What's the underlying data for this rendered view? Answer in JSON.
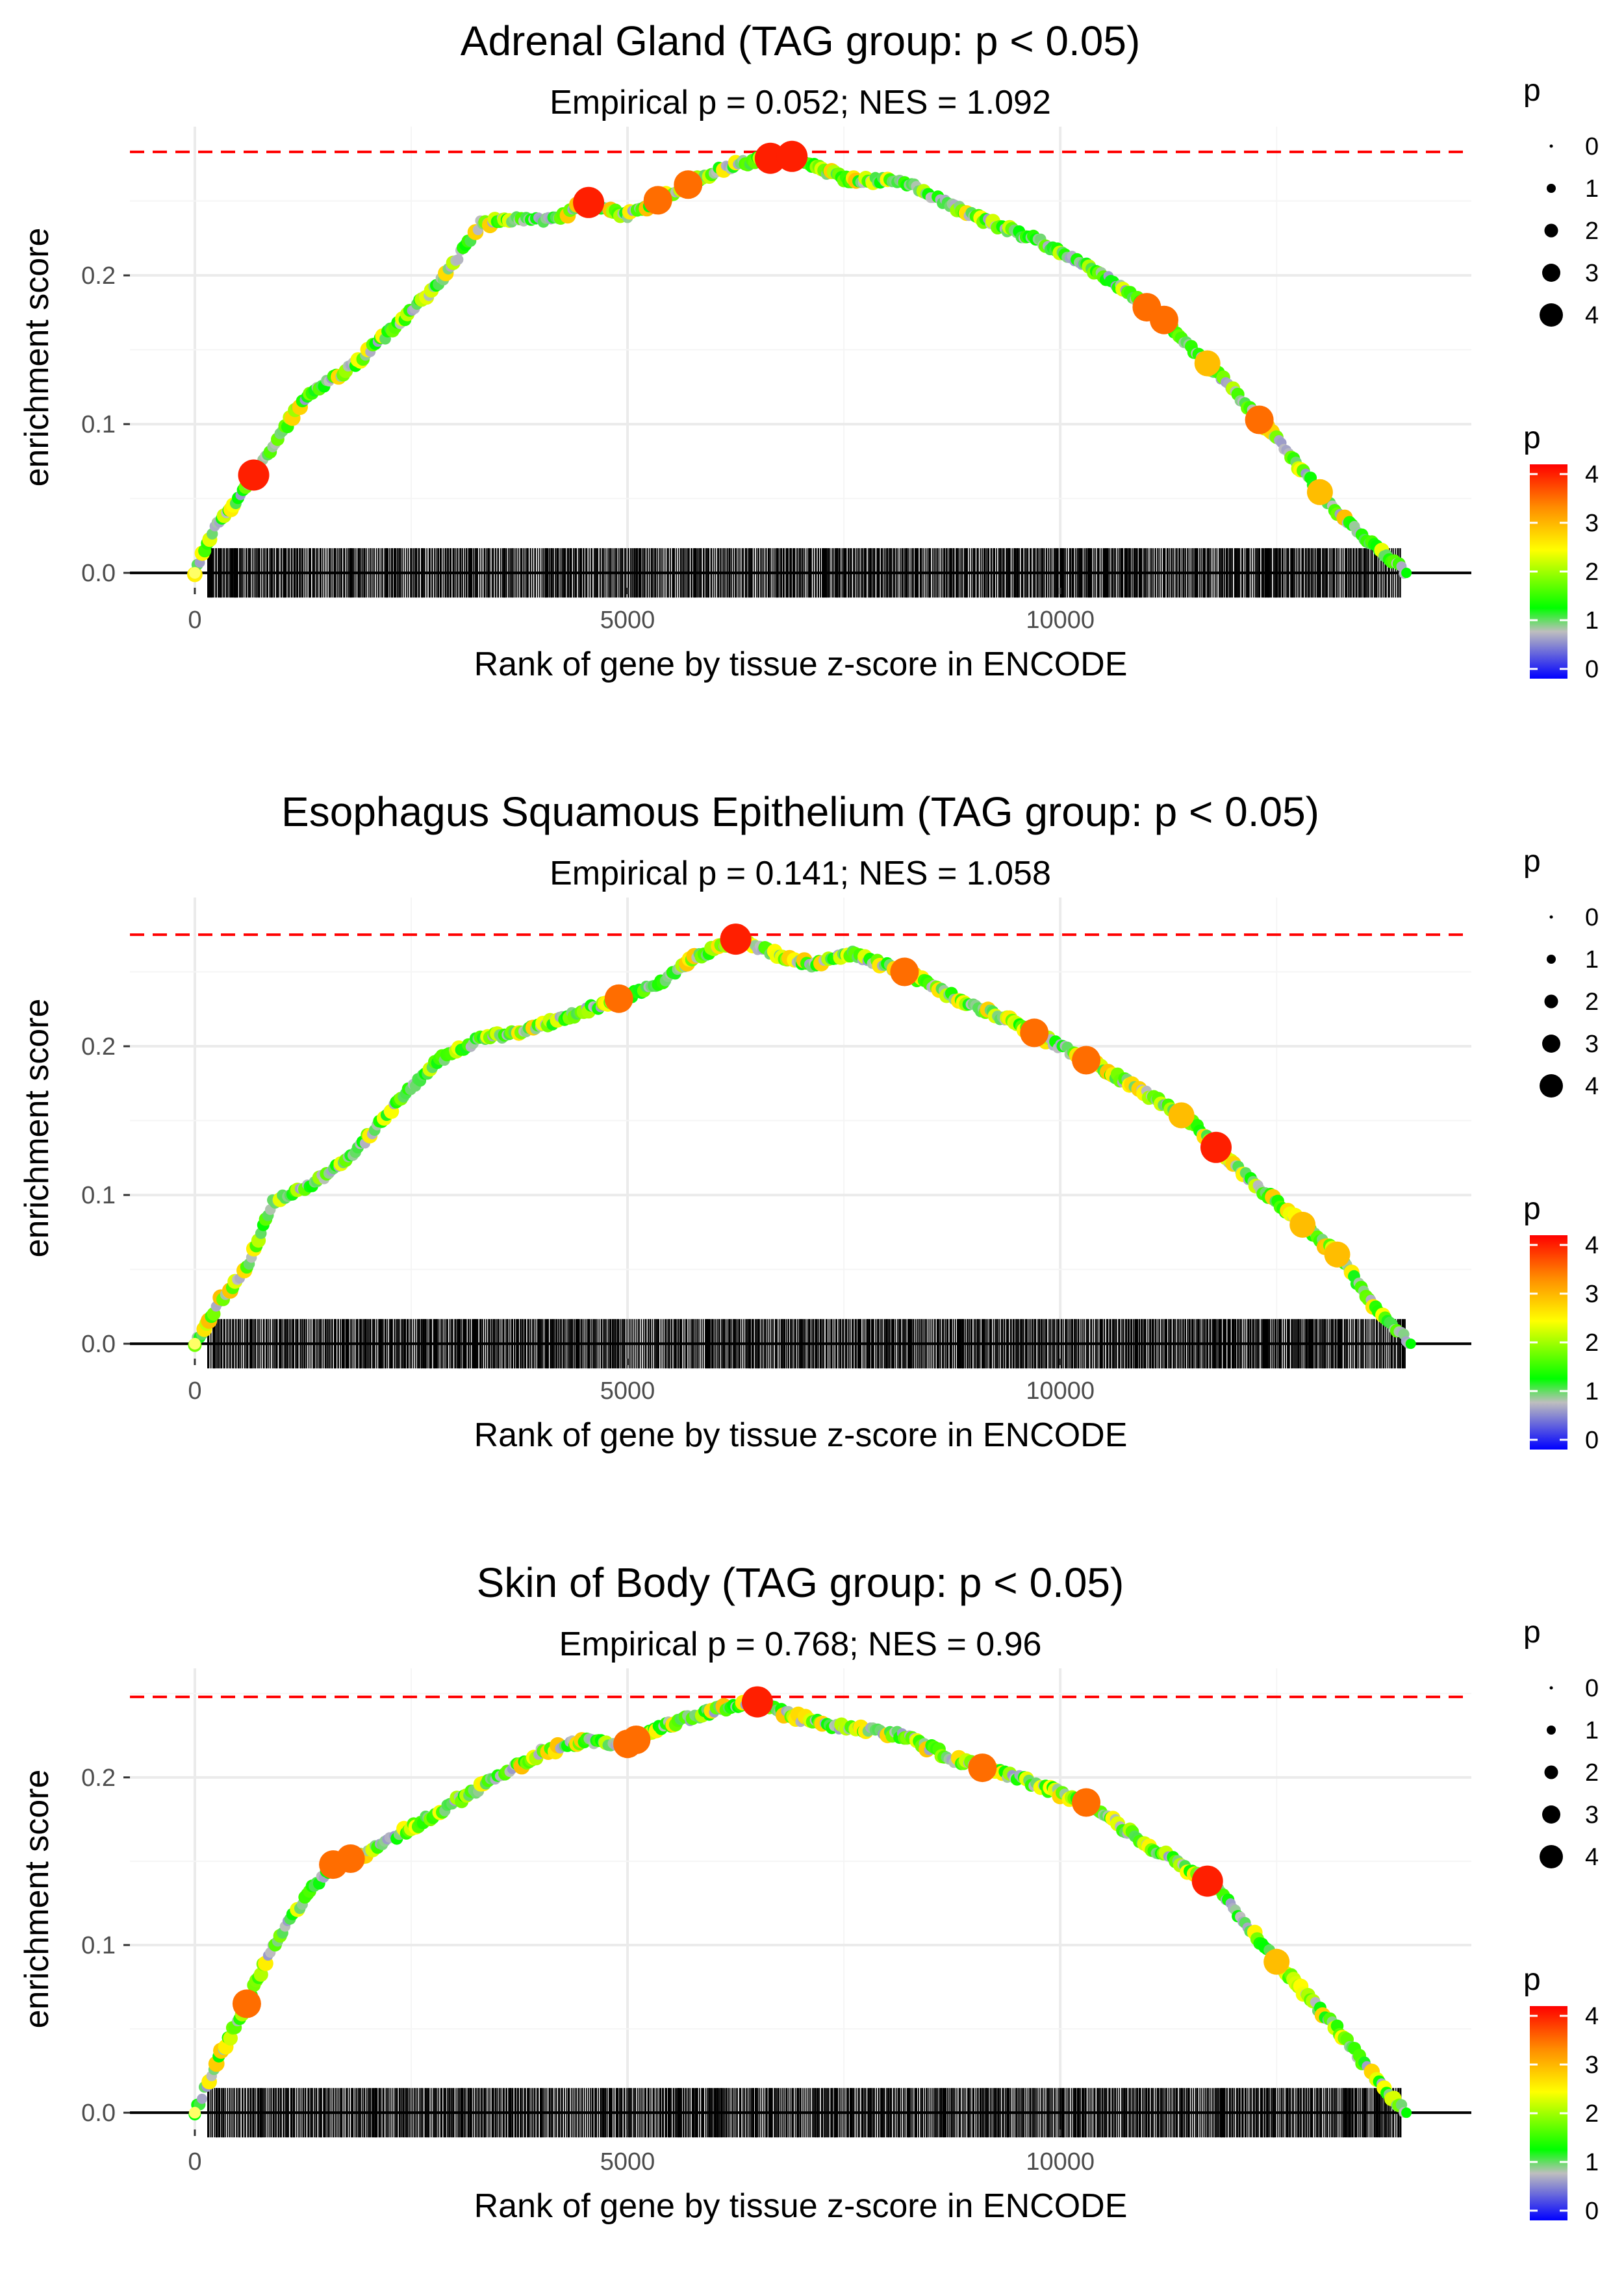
{
  "chart_data": [
    {
      "type": "line",
      "title": "Adrenal Gland (TAG group: p < 0.05)",
      "subtitle": "Empirical p = 0.052; NES = 1.092",
      "xlabel": "Rank of gene by tissue z-score in ENCODE",
      "ylabel": "enrichment score",
      "xlim": [
        -750,
        14750
      ],
      "ylim": [
        -0.01,
        0.3
      ],
      "xticks": [
        0,
        5000,
        10000
      ],
      "xtick_labels": [
        "0",
        "5000",
        "10000"
      ],
      "yticks": [
        0.0,
        0.1,
        0.2
      ],
      "ytick_labels": [
        "0.0",
        "0.1",
        "0.2"
      ],
      "max_es_line": 0.283,
      "x_end": 14000,
      "curve": [
        [
          0,
          0
        ],
        [
          230,
          0.03
        ],
        [
          500,
          0.05
        ],
        [
          900,
          0.085
        ],
        [
          1300,
          0.12
        ],
        [
          1800,
          0.138
        ],
        [
          2400,
          0.17
        ],
        [
          2900,
          0.2
        ],
        [
          3300,
          0.235
        ],
        [
          3800,
          0.238
        ],
        [
          4200,
          0.237
        ],
        [
          4500,
          0.25
        ],
        [
          5000,
          0.24
        ],
        [
          5500,
          0.255
        ],
        [
          6000,
          0.27
        ],
        [
          6500,
          0.278
        ],
        [
          6900,
          0.28
        ],
        [
          7500,
          0.265
        ],
        [
          8200,
          0.263
        ],
        [
          9000,
          0.24
        ],
        [
          9800,
          0.222
        ],
        [
          10500,
          0.2
        ],
        [
          11200,
          0.17
        ],
        [
          11800,
          0.135
        ],
        [
          12500,
          0.09
        ],
        [
          13200,
          0.04
        ],
        [
          13800,
          0.01
        ],
        [
          14000,
          0
        ]
      ],
      "highlights": [
        {
          "x": 680,
          "p": 4
        },
        {
          "x": 4550,
          "p": 4
        },
        {
          "x": 5350,
          "p": 3.5
        },
        {
          "x": 5700,
          "p": 3.5
        },
        {
          "x": 6650,
          "p": 4
        },
        {
          "x": 6900,
          "p": 4
        },
        {
          "x": 11000,
          "p": 3.5
        },
        {
          "x": 11200,
          "p": 3.5
        },
        {
          "x": 11700,
          "p": 3
        },
        {
          "x": 12300,
          "p": 3.5
        },
        {
          "x": 13000,
          "p": 3
        }
      ],
      "size_legend": {
        "title": "p",
        "labels": [
          "0",
          "1",
          "2",
          "3",
          "4"
        ]
      },
      "color_legend": {
        "title": "p",
        "labels": [
          "4",
          "3",
          "2",
          "1",
          "0"
        ],
        "colors": [
          "#ff0000",
          "#ffff00",
          "#00ff00",
          "#bebebe",
          "#0000ff"
        ]
      }
    },
    {
      "type": "line",
      "title": "Esophagus Squamous Epithelium (TAG group: p < 0.05)",
      "subtitle": "Empirical p = 0.141; NES = 1.058",
      "xlabel": "Rank of gene by tissue z-score in ENCODE",
      "ylabel": "enrichment score",
      "xlim": [
        -750,
        14750
      ],
      "ylim": [
        -0.01,
        0.3
      ],
      "xticks": [
        0,
        5000,
        10000
      ],
      "xtick_labels": [
        "0",
        "5000",
        "10000"
      ],
      "yticks": [
        0.0,
        0.1,
        0.2
      ],
      "ytick_labels": [
        "0.0",
        "0.1",
        "0.2"
      ],
      "max_es_line": 0.275,
      "x_end": 14050,
      "curve": [
        [
          0,
          0
        ],
        [
          300,
          0.03
        ],
        [
          600,
          0.05
        ],
        [
          900,
          0.095
        ],
        [
          1300,
          0.105
        ],
        [
          1800,
          0.125
        ],
        [
          2300,
          0.16
        ],
        [
          2800,
          0.19
        ],
        [
          3300,
          0.205
        ],
        [
          3800,
          0.21
        ],
        [
          4300,
          0.22
        ],
        [
          4800,
          0.23
        ],
        [
          5300,
          0.24
        ],
        [
          5800,
          0.26
        ],
        [
          6250,
          0.272
        ],
        [
          6700,
          0.262
        ],
        [
          7100,
          0.255
        ],
        [
          7600,
          0.262
        ],
        [
          8200,
          0.25
        ],
        [
          8800,
          0.232
        ],
        [
          9500,
          0.215
        ],
        [
          10000,
          0.2
        ],
        [
          10800,
          0.175
        ],
        [
          11500,
          0.15
        ],
        [
          12000,
          0.12
        ],
        [
          12600,
          0.09
        ],
        [
          13200,
          0.06
        ],
        [
          13700,
          0.02
        ],
        [
          14050,
          0
        ]
      ],
      "highlights": [
        {
          "x": 4900,
          "p": 3.5
        },
        {
          "x": 6250,
          "p": 4
        },
        {
          "x": 8200,
          "p": 3.5
        },
        {
          "x": 9700,
          "p": 3.5
        },
        {
          "x": 10300,
          "p": 3.5
        },
        {
          "x": 11400,
          "p": 3
        },
        {
          "x": 11800,
          "p": 4
        },
        {
          "x": 12800,
          "p": 3
        },
        {
          "x": 13200,
          "p": 3
        }
      ],
      "size_legend": {
        "title": "p",
        "labels": [
          "0",
          "1",
          "2",
          "3",
          "4"
        ]
      },
      "color_legend": {
        "title": "p",
        "labels": [
          "4",
          "3",
          "2",
          "1",
          "0"
        ],
        "colors": [
          "#ff0000",
          "#ffff00",
          "#00ff00",
          "#bebebe",
          "#0000ff"
        ]
      }
    },
    {
      "type": "line",
      "title": "Skin of Body (TAG group: p < 0.05)",
      "subtitle": "Empirical p = 0.768; NES = 0.96",
      "xlabel": "Rank of gene by tissue z-score in ENCODE",
      "ylabel": "enrichment score",
      "xlim": [
        -750,
        14750
      ],
      "ylim": [
        -0.01,
        0.265
      ],
      "xticks": [
        0,
        5000,
        10000
      ],
      "xtick_labels": [
        "0",
        "5000",
        "10000"
      ],
      "yticks": [
        0.0,
        0.1,
        0.2
      ],
      "ytick_labels": [
        "0.0",
        "0.1",
        "0.2"
      ],
      "max_es_line": 0.248,
      "x_end": 14000,
      "curve": [
        [
          0,
          0
        ],
        [
          250,
          0.03
        ],
        [
          600,
          0.065
        ],
        [
          900,
          0.1
        ],
        [
          1300,
          0.13
        ],
        [
          1600,
          0.148
        ],
        [
          2000,
          0.155
        ],
        [
          2500,
          0.17
        ],
        [
          3000,
          0.185
        ],
        [
          3500,
          0.2
        ],
        [
          4000,
          0.215
        ],
        [
          4500,
          0.222
        ],
        [
          5000,
          0.22
        ],
        [
          5500,
          0.232
        ],
        [
          6000,
          0.24
        ],
        [
          6500,
          0.245
        ],
        [
          7000,
          0.235
        ],
        [
          7500,
          0.23
        ],
        [
          8200,
          0.225
        ],
        [
          8800,
          0.21
        ],
        [
          9500,
          0.2
        ],
        [
          10300,
          0.185
        ],
        [
          11000,
          0.16
        ],
        [
          11800,
          0.135
        ],
        [
          12500,
          0.09
        ],
        [
          13200,
          0.05
        ],
        [
          13800,
          0.01
        ],
        [
          14000,
          0
        ]
      ],
      "highlights": [
        {
          "x": 600,
          "p": 3.5
        },
        {
          "x": 1600,
          "p": 3.5
        },
        {
          "x": 1800,
          "p": 3.5
        },
        {
          "x": 5000,
          "p": 3.5
        },
        {
          "x": 5100,
          "p": 3.5
        },
        {
          "x": 6500,
          "p": 4
        },
        {
          "x": 9100,
          "p": 3.5
        },
        {
          "x": 10300,
          "p": 3.5
        },
        {
          "x": 11700,
          "p": 4
        },
        {
          "x": 12500,
          "p": 3
        }
      ],
      "size_legend": {
        "title": "p",
        "labels": [
          "0",
          "1",
          "2",
          "3",
          "4"
        ]
      },
      "color_legend": {
        "title": "p",
        "labels": [
          "4",
          "3",
          "2",
          "1",
          "0"
        ],
        "colors": [
          "#ff0000",
          "#ffff00",
          "#00ff00",
          "#bebebe",
          "#0000ff"
        ]
      }
    }
  ]
}
